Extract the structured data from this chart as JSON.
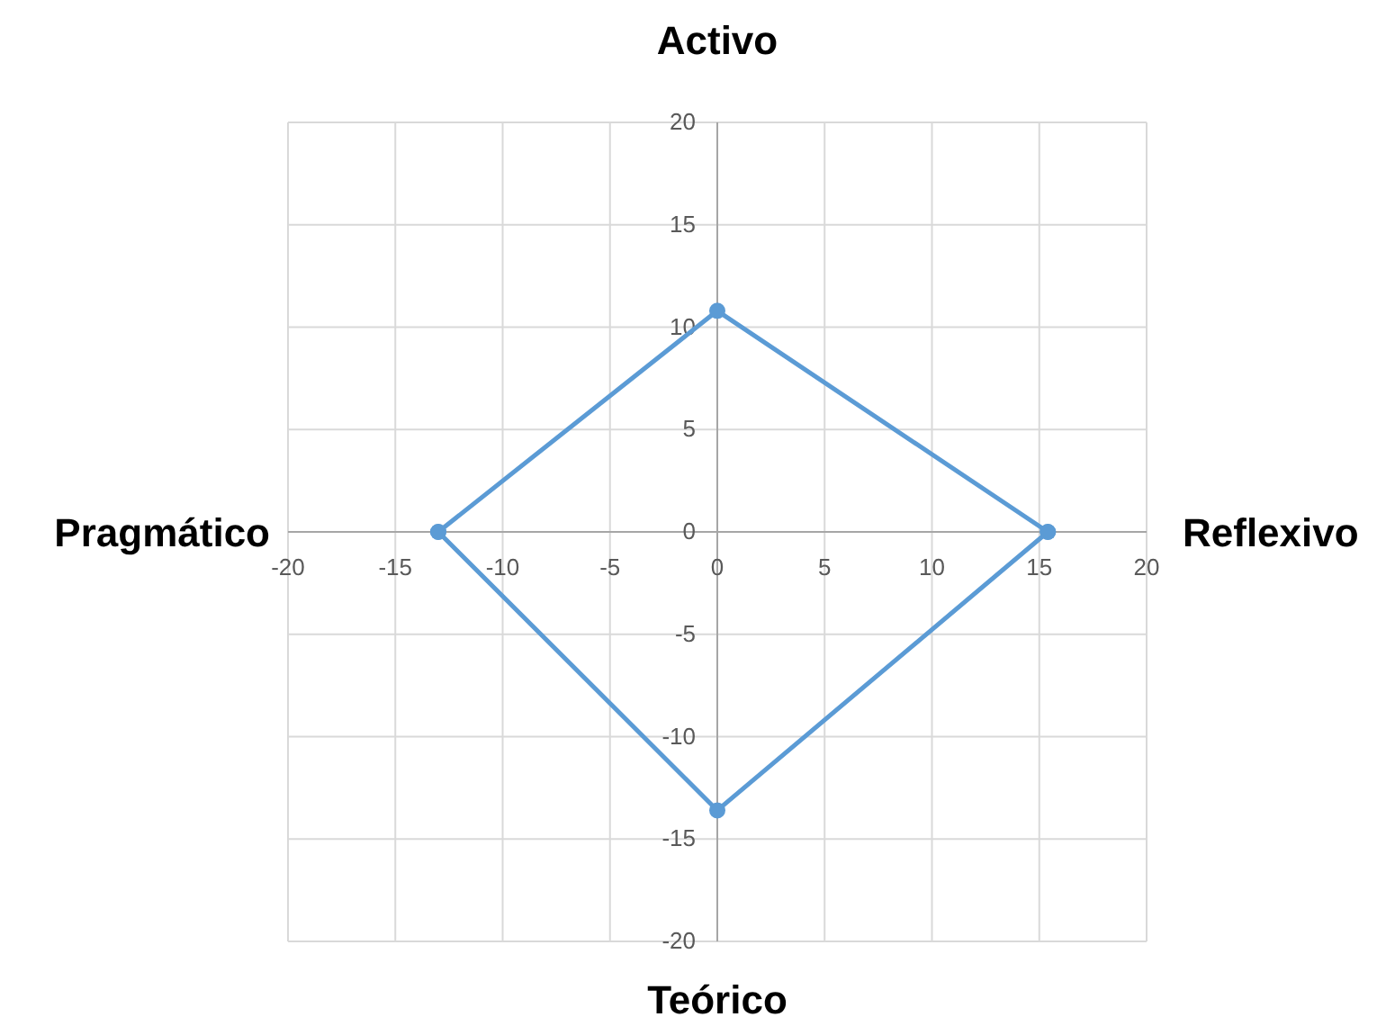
{
  "chart_data": {
    "type": "line",
    "xlim": [
      -20,
      20
    ],
    "ylim": [
      -20,
      20
    ],
    "xticks": [
      -20,
      -15,
      -10,
      -5,
      0,
      5,
      10,
      15,
      20
    ],
    "yticks": [
      -20,
      -15,
      -10,
      -5,
      0,
      5,
      10,
      15,
      20
    ],
    "grid": true,
    "marker": "circle",
    "line_style": "solid",
    "annotations": [
      "Activo",
      "Reflexivo",
      "Teórico",
      "Pragmático"
    ],
    "series": [
      {
        "color": "#5b9bd5",
        "x": [
          -13,
          0,
          15.4
        ],
        "values": [
          0,
          10.8,
          0
        ]
      },
      {
        "color": "#5b9bd5",
        "x": [
          -13,
          0,
          15.4
        ],
        "values": [
          0,
          -13.6,
          0
        ]
      }
    ]
  }
}
